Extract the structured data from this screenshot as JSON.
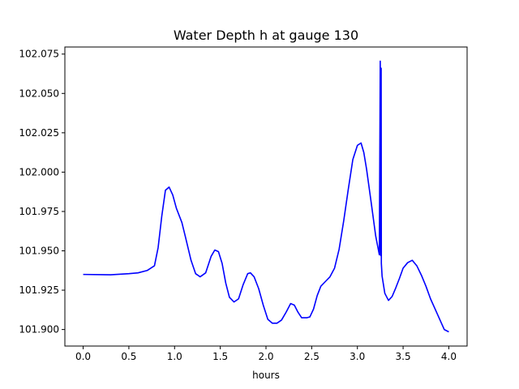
{
  "chart_data": {
    "type": "line",
    "title": "Water Depth h at gauge 130",
    "xlabel": "hours",
    "ylabel": "",
    "xlim": [
      -0.2,
      4.2
    ],
    "ylim": [
      101.8895,
      102.0795
    ],
    "xticks": [
      0.0,
      0.5,
      1.0,
      1.5,
      2.0,
      2.5,
      3.0,
      3.5,
      4.0
    ],
    "xtick_labels": [
      "0.0",
      "0.5",
      "1.0",
      "1.5",
      "2.0",
      "2.5",
      "3.0",
      "3.5",
      "4.0"
    ],
    "yticks": [
      101.9,
      101.925,
      101.95,
      101.975,
      102.0,
      102.025,
      102.05,
      102.075
    ],
    "ytick_labels": [
      "101.900",
      "101.925",
      "101.950",
      "101.975",
      "102.000",
      "102.025",
      "102.050",
      "102.075"
    ],
    "grid": false,
    "series": [
      {
        "color": "#0000ff",
        "x": [
          0.0,
          0.3,
          0.5,
          0.6,
          0.7,
          0.78,
          0.82,
          0.86,
          0.9,
          0.94,
          0.98,
          1.02,
          1.08,
          1.12,
          1.18,
          1.23,
          1.28,
          1.34,
          1.4,
          1.44,
          1.48,
          1.52,
          1.56,
          1.6,
          1.65,
          1.7,
          1.75,
          1.8,
          1.83,
          1.87,
          1.92,
          1.97,
          2.02,
          2.07,
          2.12,
          2.17,
          2.22,
          2.27,
          2.31,
          2.35,
          2.39,
          2.42,
          2.45,
          2.48,
          2.52,
          2.56,
          2.6,
          2.65,
          2.7,
          2.75,
          2.8,
          2.85,
          2.9,
          2.95,
          3.0,
          3.04,
          3.07,
          3.1,
          3.15,
          3.2,
          3.24,
          3.25,
          3.255,
          3.26,
          3.262,
          3.27,
          3.3,
          3.34,
          3.38,
          3.42,
          3.46,
          3.5,
          3.55,
          3.6,
          3.65,
          3.7,
          3.75,
          3.8,
          3.85,
          3.9,
          3.95,
          4.0
        ],
        "y": [
          101.935,
          101.9348,
          101.9355,
          101.936,
          101.9375,
          101.9405,
          101.952,
          101.972,
          101.9885,
          101.9905,
          101.9855,
          101.977,
          101.968,
          101.9585,
          101.944,
          101.9355,
          101.9335,
          101.936,
          101.9465,
          101.9505,
          101.9495,
          101.942,
          101.9295,
          101.9205,
          101.9175,
          101.9195,
          101.9285,
          101.9355,
          101.936,
          101.9335,
          101.926,
          101.9155,
          101.9065,
          101.904,
          101.904,
          101.906,
          101.911,
          101.9165,
          101.9155,
          101.911,
          101.9075,
          101.9075,
          101.9075,
          101.908,
          101.913,
          101.9215,
          101.9275,
          101.9305,
          101.9335,
          101.939,
          101.951,
          101.969,
          101.989,
          102.008,
          102.017,
          102.0185,
          102.0125,
          102.002,
          101.981,
          101.9595,
          101.9475,
          102.0705,
          101.947,
          102.066,
          101.942,
          101.934,
          101.923,
          101.9185,
          101.921,
          101.9265,
          101.9325,
          101.939,
          101.9425,
          101.944,
          101.9405,
          101.9345,
          101.9275,
          101.9195,
          101.913,
          101.9065,
          101.9,
          101.8985
        ]
      }
    ]
  }
}
